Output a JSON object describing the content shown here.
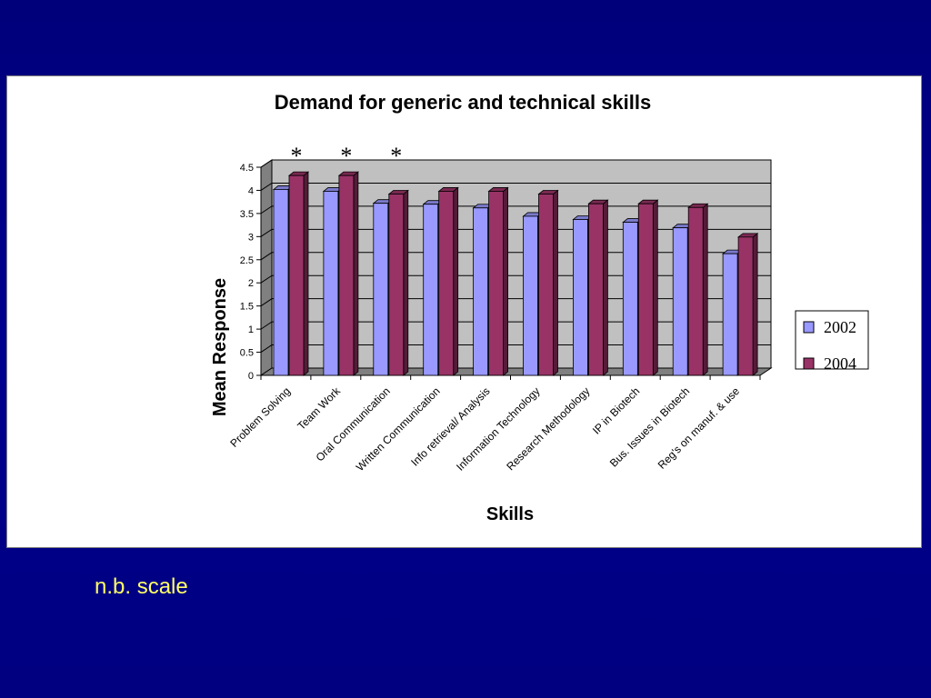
{
  "slide": {
    "note": "n.b. scale"
  },
  "chart_data": {
    "type": "bar",
    "title": "Demand for generic and technical skills",
    "xlabel": "Skills",
    "ylabel": "Mean Response",
    "ylim": [
      0,
      4.5
    ],
    "yticks": [
      "0",
      "0.5",
      "1",
      "1.5",
      "2",
      "2.5",
      "3",
      "3.5",
      "4",
      "4.5"
    ],
    "grid": true,
    "legend_position": "right",
    "categories": [
      "Problem Solving",
      "Team Work",
      "Oral Communication",
      "Written Communication",
      "Info retrieval/ Analysis",
      "Information Technology",
      "Research Methodology",
      "IP in Biotech",
      "Bus. Issues in Biotech",
      "Reg's on manuf. & use"
    ],
    "series": [
      {
        "name": "2002",
        "color": "#9999ff",
        "values": [
          4.02,
          3.98,
          3.72,
          3.7,
          3.62,
          3.44,
          3.37,
          3.31,
          3.19,
          2.63
        ]
      },
      {
        "name": "2004",
        "color": "#993366",
        "values": [
          4.32,
          4.32,
          3.92,
          3.98,
          3.98,
          3.92,
          3.71,
          3.71,
          3.63,
          2.99
        ]
      }
    ],
    "annotations": [
      {
        "text": "*",
        "category_index": 0
      },
      {
        "text": "*",
        "category_index": 1
      },
      {
        "text": "*",
        "category_index": 2
      }
    ]
  }
}
